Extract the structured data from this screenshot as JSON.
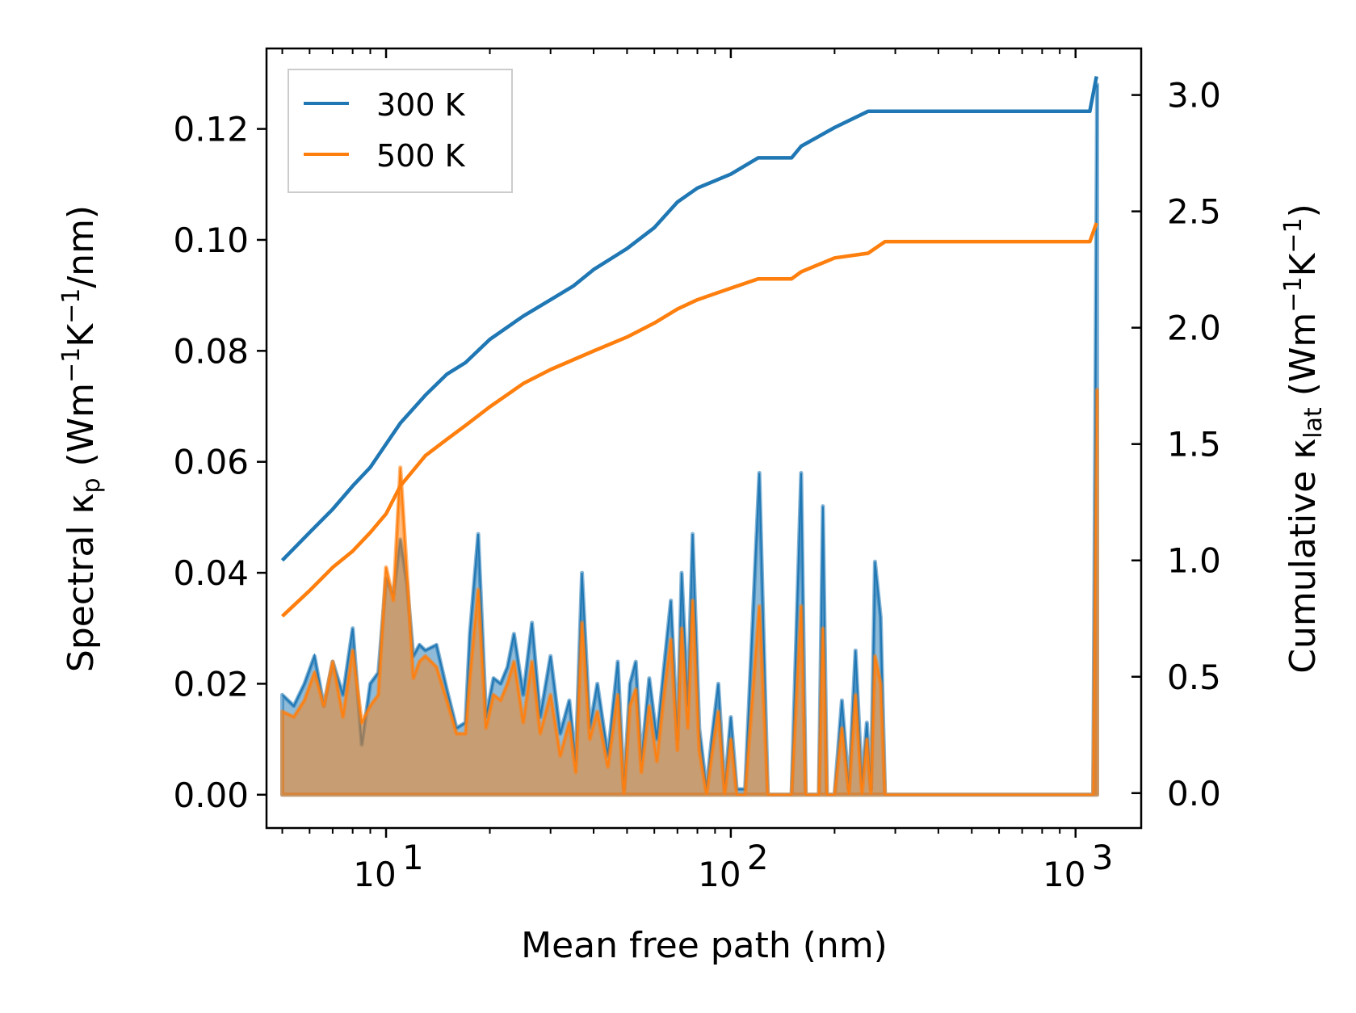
{
  "chart_data": {
    "type": "line",
    "x_scale": "log",
    "xlabel": "Mean free path (nm)",
    "xlim": [
      4.5,
      1550
    ],
    "x_ticks": [
      {
        "value": 10,
        "base": "10",
        "exp": "1"
      },
      {
        "value": 100,
        "base": "10",
        "exp": "2"
      },
      {
        "value": 1000,
        "base": "10",
        "exp": "3"
      }
    ],
    "y_left": {
      "label_main": "Spectral κ",
      "label_sub": "p",
      "label_unit_open": " (Wm",
      "label_unit_exp1": "−1",
      "label_unit_mid": "K",
      "label_unit_exp2": "−1",
      "label_unit_close": "/nm)",
      "ylim": [
        -0.006,
        0.1345
      ],
      "ticks": [
        "0.00",
        "0.02",
        "0.04",
        "0.06",
        "0.08",
        "0.10",
        "0.12"
      ],
      "tick_values": [
        0,
        0.02,
        0.04,
        0.06,
        0.08,
        0.1,
        0.12
      ]
    },
    "y_right": {
      "label_main": "Cumulative κ",
      "label_sub": "lat",
      "label_unit_open": " (Wm",
      "label_unit_exp1": "−1",
      "label_unit_mid": "K",
      "label_unit_exp2": "−1",
      "label_unit_close": ")",
      "ylim": [
        -0.15,
        3.2
      ],
      "ticks": [
        "0.0",
        "0.5",
        "1.0",
        "1.5",
        "2.0",
        "2.5",
        "3.0"
      ],
      "tick_values": [
        0,
        0.5,
        1.0,
        1.5,
        2.0,
        2.5,
        3.0
      ]
    },
    "legend": {
      "placement": "top-left",
      "entries": [
        {
          "label": "300 K",
          "color": "#1f77b4"
        },
        {
          "label": "500 K",
          "color": "#ff7f0e"
        }
      ]
    },
    "series": [
      {
        "name": "300 K",
        "color": "#1f77b4",
        "cumulative": [
          [
            5,
            1.0
          ],
          [
            6,
            1.12
          ],
          [
            7,
            1.22
          ],
          [
            8,
            1.32
          ],
          [
            9,
            1.4
          ],
          [
            10,
            1.5
          ],
          [
            11,
            1.59
          ],
          [
            13,
            1.71
          ],
          [
            15,
            1.8
          ],
          [
            17,
            1.85
          ],
          [
            20,
            1.95
          ],
          [
            25,
            2.05
          ],
          [
            30,
            2.12
          ],
          [
            35,
            2.18
          ],
          [
            40,
            2.25
          ],
          [
            50,
            2.34
          ],
          [
            60,
            2.43
          ],
          [
            70,
            2.54
          ],
          [
            80,
            2.6
          ],
          [
            100,
            2.66
          ],
          [
            120,
            2.73
          ],
          [
            150,
            2.73
          ],
          [
            160,
            2.78
          ],
          [
            200,
            2.86
          ],
          [
            250,
            2.93
          ],
          [
            280,
            2.93
          ],
          [
            1100,
            2.93
          ],
          [
            1150,
            3.08
          ]
        ],
        "spectral": [
          [
            5.0,
            0.018
          ],
          [
            5.4,
            0.016
          ],
          [
            5.8,
            0.02
          ],
          [
            6.2,
            0.025
          ],
          [
            6.6,
            0.016
          ],
          [
            7.0,
            0.024
          ],
          [
            7.5,
            0.018
          ],
          [
            8.0,
            0.03
          ],
          [
            8.5,
            0.009
          ],
          [
            9.0,
            0.02
          ],
          [
            9.5,
            0.022
          ],
          [
            10.0,
            0.039
          ],
          [
            10.5,
            0.036
          ],
          [
            11.0,
            0.046
          ],
          [
            11.5,
            0.038
          ],
          [
            12.0,
            0.025
          ],
          [
            12.5,
            0.027
          ],
          [
            13.0,
            0.026
          ],
          [
            14.0,
            0.027
          ],
          [
            15.0,
            0.019
          ],
          [
            16.0,
            0.012
          ],
          [
            17.0,
            0.013
          ],
          [
            17.5,
            0.029
          ],
          [
            18.5,
            0.047
          ],
          [
            19.5,
            0.014
          ],
          [
            20.5,
            0.021
          ],
          [
            21.5,
            0.02
          ],
          [
            22.5,
            0.023
          ],
          [
            23.5,
            0.029
          ],
          [
            25.0,
            0.018
          ],
          [
            26.5,
            0.031
          ],
          [
            28.0,
            0.014
          ],
          [
            30.0,
            0.025
          ],
          [
            32.0,
            0.011
          ],
          [
            34.0,
            0.017
          ],
          [
            35.5,
            0.006
          ],
          [
            37.0,
            0.04
          ],
          [
            39.0,
            0.012
          ],
          [
            41.0,
            0.02
          ],
          [
            44.0,
            0.007
          ],
          [
            47.0,
            0.024
          ],
          [
            49.0,
            0.001
          ],
          [
            51.0,
            0.02
          ],
          [
            53.0,
            0.024
          ],
          [
            55.0,
            0.006
          ],
          [
            58.0,
            0.021
          ],
          [
            61.0,
            0.01
          ],
          [
            64.0,
            0.023
          ],
          [
            67.0,
            0.035
          ],
          [
            70.0,
            0.01
          ],
          [
            72.0,
            0.04
          ],
          [
            75.0,
            0.016
          ],
          [
            77.5,
            0.047
          ],
          [
            81.0,
            0.012
          ],
          [
            85.0,
            0.001
          ],
          [
            88.0,
            0.01
          ],
          [
            92.0,
            0.02
          ],
          [
            96.0,
            0.001
          ],
          [
            100.0,
            0.014
          ],
          [
            104.0,
            0.001
          ],
          [
            110.0,
            0.001
          ],
          [
            121.0,
            0.058
          ],
          [
            128.0,
            0.0
          ],
          [
            150.0,
            0.0
          ],
          [
            160.0,
            0.058
          ],
          [
            165.0,
            0.0
          ],
          [
            180.0,
            0.0
          ],
          [
            185.0,
            0.052
          ],
          [
            190.0,
            0.0
          ],
          [
            200.0,
            0.0
          ],
          [
            210.0,
            0.017
          ],
          [
            220.0,
            0.001
          ],
          [
            230.0,
            0.026
          ],
          [
            240.0,
            0.002
          ],
          [
            248.0,
            0.013
          ],
          [
            255.0,
            0.001
          ],
          [
            262.0,
            0.042
          ],
          [
            272.0,
            0.032
          ],
          [
            280.0,
            0.0
          ],
          [
            1125.0,
            0.0
          ],
          [
            1155.0,
            0.128
          ]
        ]
      },
      {
        "name": "500 K",
        "color": "#ff7f0e",
        "cumulative": [
          [
            5,
            0.76
          ],
          [
            6,
            0.87
          ],
          [
            7,
            0.97
          ],
          [
            8,
            1.04
          ],
          [
            9,
            1.12
          ],
          [
            10,
            1.2
          ],
          [
            11,
            1.32
          ],
          [
            13,
            1.45
          ],
          [
            15,
            1.52
          ],
          [
            17,
            1.58
          ],
          [
            20,
            1.66
          ],
          [
            25,
            1.76
          ],
          [
            30,
            1.82
          ],
          [
            40,
            1.9
          ],
          [
            50,
            1.96
          ],
          [
            60,
            2.02
          ],
          [
            70,
            2.08
          ],
          [
            80,
            2.12
          ],
          [
            100,
            2.17
          ],
          [
            120,
            2.21
          ],
          [
            150,
            2.21
          ],
          [
            160,
            2.24
          ],
          [
            200,
            2.3
          ],
          [
            250,
            2.32
          ],
          [
            280,
            2.37
          ],
          [
            1100,
            2.37
          ],
          [
            1150,
            2.45
          ]
        ],
        "spectral": [
          [
            5.0,
            0.015
          ],
          [
            5.4,
            0.014
          ],
          [
            5.8,
            0.017
          ],
          [
            6.2,
            0.022
          ],
          [
            6.6,
            0.016
          ],
          [
            7.0,
            0.024
          ],
          [
            7.5,
            0.014
          ],
          [
            8.0,
            0.026
          ],
          [
            8.5,
            0.013
          ],
          [
            9.0,
            0.016
          ],
          [
            9.5,
            0.018
          ],
          [
            10.0,
            0.041
          ],
          [
            10.5,
            0.035
          ],
          [
            11.0,
            0.059
          ],
          [
            11.5,
            0.04
          ],
          [
            12.0,
            0.021
          ],
          [
            12.5,
            0.024
          ],
          [
            13.0,
            0.025
          ],
          [
            14.0,
            0.023
          ],
          [
            15.0,
            0.017
          ],
          [
            16.0,
            0.011
          ],
          [
            17.0,
            0.011
          ],
          [
            17.5,
            0.021
          ],
          [
            18.5,
            0.037
          ],
          [
            19.5,
            0.012
          ],
          [
            20.5,
            0.018
          ],
          [
            21.5,
            0.017
          ],
          [
            22.5,
            0.02
          ],
          [
            23.5,
            0.024
          ],
          [
            25.0,
            0.013
          ],
          [
            26.5,
            0.024
          ],
          [
            28.0,
            0.011
          ],
          [
            30.0,
            0.018
          ],
          [
            32.0,
            0.007
          ],
          [
            34.0,
            0.013
          ],
          [
            35.5,
            0.004
          ],
          [
            37.0,
            0.031
          ],
          [
            39.0,
            0.01
          ],
          [
            41.0,
            0.015
          ],
          [
            44.0,
            0.005
          ],
          [
            47.0,
            0.018
          ],
          [
            49.0,
            0.0
          ],
          [
            51.0,
            0.016
          ],
          [
            53.0,
            0.019
          ],
          [
            55.0,
            0.004
          ],
          [
            58.0,
            0.016
          ],
          [
            61.0,
            0.006
          ],
          [
            64.0,
            0.018
          ],
          [
            67.0,
            0.028
          ],
          [
            70.0,
            0.008
          ],
          [
            72.0,
            0.03
          ],
          [
            75.0,
            0.012
          ],
          [
            77.5,
            0.035
          ],
          [
            81.0,
            0.008
          ],
          [
            85.0,
            0.0
          ],
          [
            88.0,
            0.007
          ],
          [
            92.0,
            0.015
          ],
          [
            96.0,
            0.0
          ],
          [
            100.0,
            0.01
          ],
          [
            104.0,
            0.0
          ],
          [
            110.0,
            0.0
          ],
          [
            121.0,
            0.034
          ],
          [
            128.0,
            0.0
          ],
          [
            150.0,
            0.0
          ],
          [
            160.0,
            0.034
          ],
          [
            165.0,
            0.0
          ],
          [
            180.0,
            0.0
          ],
          [
            185.0,
            0.03
          ],
          [
            190.0,
            0.0
          ],
          [
            200.0,
            0.0
          ],
          [
            210.0,
            0.012
          ],
          [
            220.0,
            0.0
          ],
          [
            230.0,
            0.018
          ],
          [
            240.0,
            0.0
          ],
          [
            248.0,
            0.01
          ],
          [
            255.0,
            0.0
          ],
          [
            262.0,
            0.025
          ],
          [
            272.0,
            0.02
          ],
          [
            280.0,
            0.0
          ],
          [
            1125.0,
            0.0
          ],
          [
            1155.0,
            0.073
          ]
        ]
      }
    ]
  }
}
